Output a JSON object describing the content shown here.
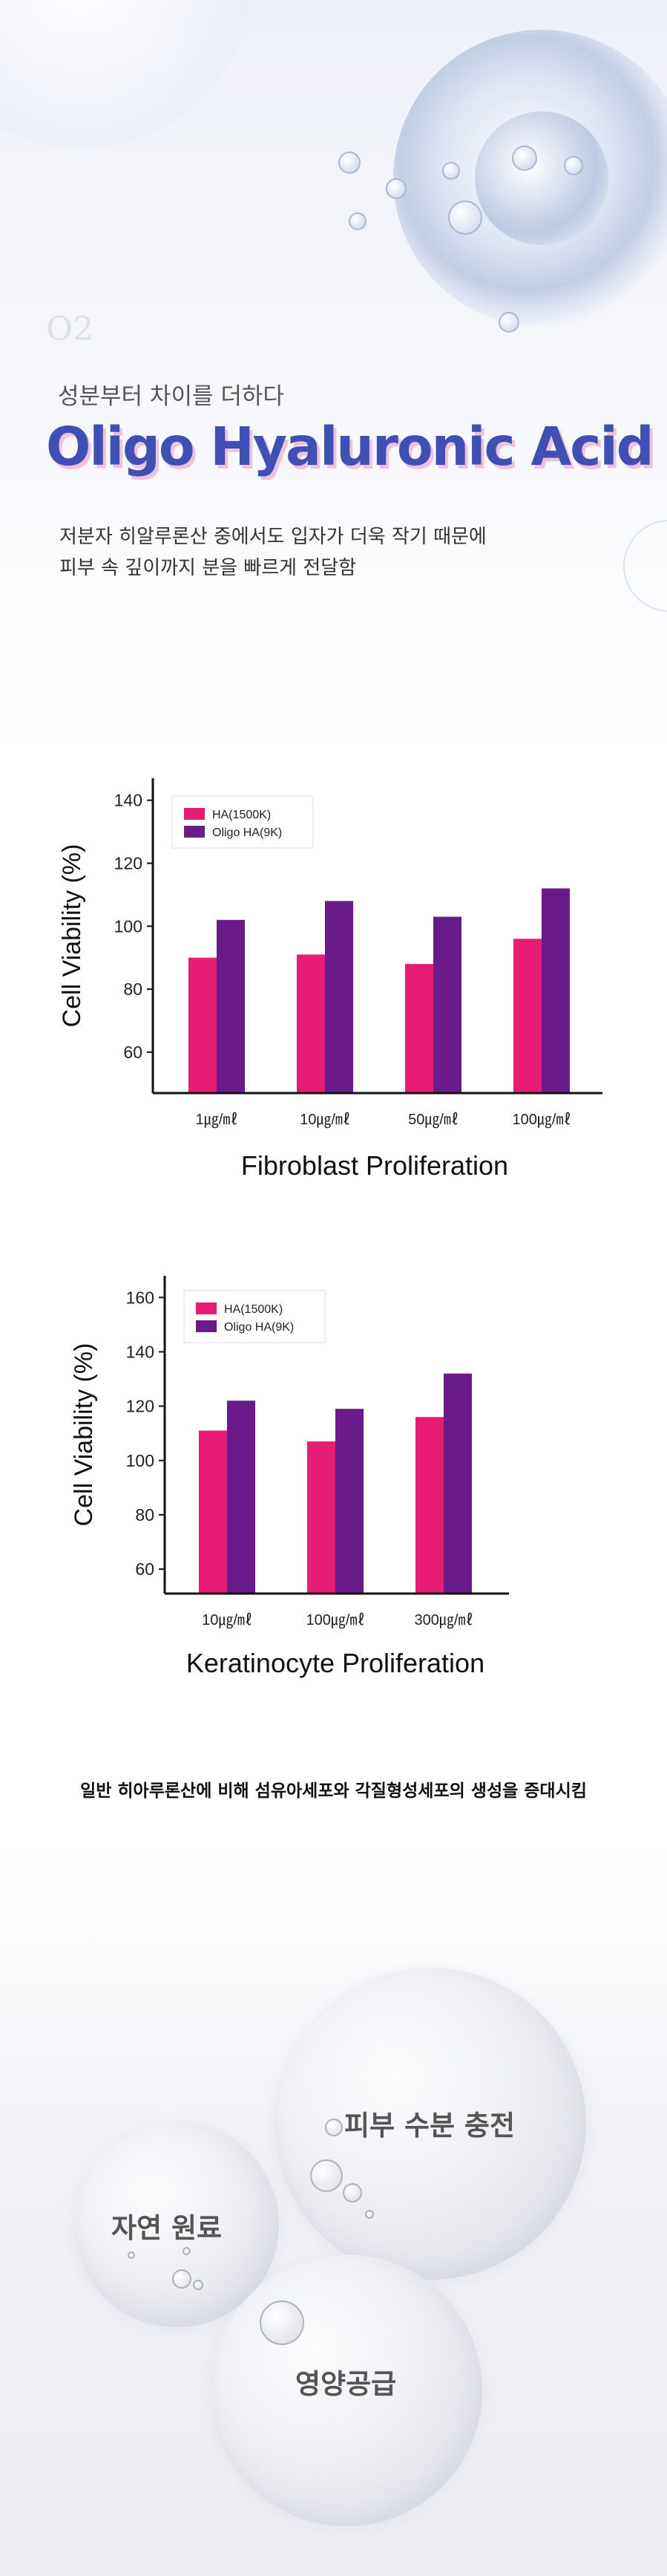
{
  "hero": {
    "ghost_text": "O2",
    "subtitle": "성분부터 차이를 더하다",
    "title": "Oligo Hyaluronic Acid",
    "desc_line1": "저분자 히알루론산 중에서도 입자가 더욱 작기 때문에",
    "desc_line2": "피부 속 깊이까지 분을 빠르게 전달함"
  },
  "chart_data": [
    {
      "type": "bar",
      "title": "Fibroblast Proliferation",
      "xlabel": "",
      "ylabel": "Cell Viability (%)",
      "categories": [
        "1㎍/㎖",
        "10㎍/㎖",
        "50㎍/㎖",
        "100㎍/㎖"
      ],
      "series": [
        {
          "name": "HA(1500K)",
          "values": [
            90,
            91,
            88,
            96
          ],
          "color": "#e71d73"
        },
        {
          "name": "Oligo HA(9K)",
          "values": [
            102,
            108,
            103,
            112
          ],
          "color": "#6a1b8a"
        }
      ],
      "yticks": [
        60,
        80,
        100,
        120,
        140
      ],
      "ylim": [
        47,
        147
      ],
      "legend": "top-left"
    },
    {
      "type": "bar",
      "title": "Keratinocyte Proliferation",
      "xlabel": "",
      "ylabel": "Cell Viability (%)",
      "categories": [
        "10㎍/㎖",
        "100㎍/㎖",
        "300㎍/㎖"
      ],
      "series": [
        {
          "name": "HA(1500K)",
          "values": [
            111,
            107,
            116
          ],
          "color": "#e71d73"
        },
        {
          "name": "Oligo HA(9K)",
          "values": [
            122,
            119,
            132
          ],
          "color": "#6a1b8a"
        }
      ],
      "yticks": [
        60,
        80,
        100,
        120,
        140,
        160
      ],
      "ylim": [
        51,
        168
      ],
      "legend": "top-left"
    }
  ],
  "caption": "일반 히아루론산에 비해 섬유아세포와 각질형성세포의 생성을 증대시킴",
  "features": {
    "moisture": "피부 수분 충전",
    "natural": "자연 원료",
    "nutrition": "영양공급"
  }
}
